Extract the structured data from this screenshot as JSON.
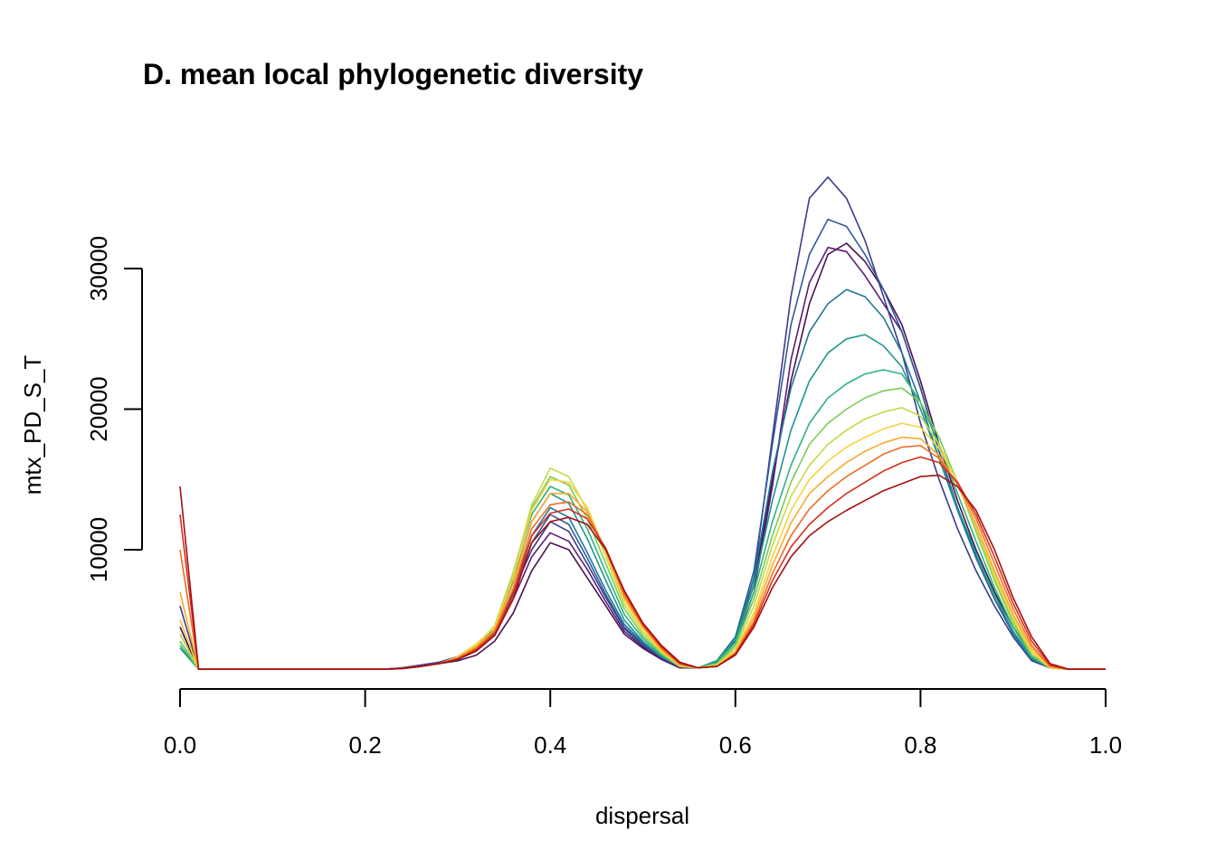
{
  "chart_data": {
    "type": "line",
    "title": "D. mean local phylogenetic diversity",
    "xlabel": "dispersal",
    "ylabel": "mtx_PD_S_T",
    "xlim": [
      0,
      1
    ],
    "ylim": [
      1500,
      38000
    ],
    "x_ticks": [
      0.0,
      0.2,
      0.4,
      0.6,
      0.8,
      1.0
    ],
    "x_tick_labels": [
      "0.0",
      "0.2",
      "0.4",
      "0.6",
      "0.8",
      "1.0"
    ],
    "y_ticks": [
      10000,
      20000,
      30000
    ],
    "y_tick_labels": [
      "10000",
      "20000",
      "30000"
    ],
    "grid": false,
    "legend": "none",
    "x": [
      0.0,
      0.02,
      0.04,
      0.06,
      0.08,
      0.1,
      0.12,
      0.14,
      0.16,
      0.18,
      0.2,
      0.22,
      0.24,
      0.26,
      0.28,
      0.3,
      0.32,
      0.34,
      0.36,
      0.38,
      0.4,
      0.42,
      0.44,
      0.46,
      0.48,
      0.5,
      0.52,
      0.54,
      0.56,
      0.58,
      0.6,
      0.62,
      0.64,
      0.66,
      0.68,
      0.7,
      0.72,
      0.74,
      0.76,
      0.78,
      0.8,
      0.82,
      0.84,
      0.86,
      0.88,
      0.9,
      0.92,
      0.94,
      0.96,
      0.98,
      1.0
    ],
    "series": [
      {
        "color": "#4b1150",
        "values": [
          4500,
          1500,
          1500,
          1500,
          1500,
          1500,
          1500,
          1500,
          1500,
          1500,
          1500,
          1500,
          1550,
          1700,
          1900,
          2100,
          2500,
          3500,
          5500,
          8500,
          10500,
          10000,
          8000,
          6000,
          4000,
          3000,
          2200,
          1600,
          1600,
          2000,
          3500,
          7500,
          15000,
          22000,
          27500,
          31000,
          31800,
          30500,
          28500,
          26000,
          22000,
          17500,
          13500,
          10000,
          7000,
          4500,
          2500,
          1600,
          1500,
          1500,
          1500
        ]
      },
      {
        "color": "#5a1d78",
        "values": [
          5000,
          1500,
          1500,
          1500,
          1500,
          1500,
          1500,
          1500,
          1500,
          1500,
          1500,
          1500,
          1600,
          1800,
          2000,
          2300,
          2800,
          4000,
          6500,
          9500,
          11200,
          10600,
          8600,
          6300,
          4200,
          3100,
          2200,
          1600,
          1600,
          1900,
          3200,
          7000,
          14500,
          23500,
          29000,
          31500,
          31200,
          29500,
          27500,
          25500,
          21500,
          17000,
          13000,
          9500,
          6500,
          4200,
          2300,
          1600,
          1500,
          1500,
          1500
        ]
      },
      {
        "color": "#3b3c8a",
        "values": [
          6000,
          1500,
          1500,
          1500,
          1500,
          1500,
          1500,
          1500,
          1500,
          1500,
          1500,
          1500,
          1600,
          1750,
          2000,
          2400,
          3000,
          4200,
          7000,
          10000,
          12000,
          11300,
          9000,
          6600,
          4400,
          3200,
          2300,
          1700,
          1600,
          2000,
          3500,
          8000,
          18000,
          28000,
          35000,
          36500,
          35000,
          32000,
          28000,
          24000,
          19000,
          15000,
          11500,
          8500,
          6000,
          3800,
          2100,
          1600,
          1500,
          1500,
          1500
        ]
      },
      {
        "color": "#2f5b9a",
        "values": [
          4000,
          1500,
          1500,
          1500,
          1500,
          1500,
          1500,
          1500,
          1500,
          1500,
          1500,
          1500,
          1550,
          1700,
          1900,
          2200,
          2800,
          4000,
          6800,
          10500,
          12500,
          11800,
          9400,
          6800,
          4500,
          3300,
          2400,
          1700,
          1600,
          2100,
          3800,
          8500,
          17500,
          26000,
          31000,
          33500,
          33000,
          31000,
          28500,
          25500,
          21500,
          17000,
          13000,
          9500,
          6500,
          4000,
          2200,
          1600,
          1500,
          1500,
          1500
        ]
      },
      {
        "color": "#227599",
        "values": [
          3500,
          1500,
          1500,
          1500,
          1500,
          1500,
          1500,
          1500,
          1500,
          1500,
          1500,
          1500,
          1550,
          1700,
          1900,
          2200,
          2800,
          4100,
          7200,
          11000,
          13000,
          12300,
          9800,
          7100,
          4700,
          3400,
          2400,
          1700,
          1600,
          2100,
          3800,
          8000,
          15500,
          21500,
          25500,
          27500,
          28500,
          28000,
          26500,
          24000,
          20500,
          16500,
          12800,
          9400,
          6500,
          4000,
          2200,
          1600,
          1500,
          1500,
          1500
        ]
      },
      {
        "color": "#1f9591",
        "values": [
          3000,
          1500,
          1500,
          1500,
          1500,
          1500,
          1500,
          1500,
          1500,
          1500,
          1500,
          1500,
          1550,
          1700,
          1900,
          2200,
          2900,
          4300,
          7800,
          12000,
          14000,
          13300,
          10800,
          7800,
          5000,
          3500,
          2400,
          1700,
          1600,
          2100,
          3600,
          7500,
          13500,
          18500,
          22000,
          24000,
          25000,
          25300,
          24500,
          23000,
          20000,
          16500,
          13000,
          9800,
          6800,
          4200,
          2300,
          1600,
          1500,
          1500,
          1500
        ]
      },
      {
        "color": "#2eb27c",
        "values": [
          3200,
          1500,
          1500,
          1500,
          1500,
          1500,
          1500,
          1500,
          1500,
          1500,
          1500,
          1500,
          1550,
          1700,
          1900,
          2300,
          3000,
          4500,
          8200,
          12500,
          14500,
          13900,
          11500,
          8400,
          5400,
          3700,
          2500,
          1700,
          1600,
          2000,
          3400,
          7000,
          12000,
          16000,
          19000,
          20800,
          21800,
          22500,
          22800,
          22500,
          20500,
          17500,
          14000,
          10600,
          7300,
          4500,
          2400,
          1600,
          1500,
          1500,
          1500
        ]
      },
      {
        "color": "#7acb57",
        "values": [
          3500,
          1500,
          1500,
          1500,
          1500,
          1500,
          1500,
          1500,
          1500,
          1500,
          1500,
          1500,
          1550,
          1700,
          1900,
          2300,
          3100,
          4600,
          8400,
          13000,
          15200,
          14600,
          12200,
          9000,
          5800,
          3900,
          2600,
          1700,
          1600,
          1900,
          3200,
          6500,
          11000,
          14800,
          17500,
          19000,
          20000,
          20800,
          21300,
          21500,
          20500,
          18000,
          14800,
          11300,
          7800,
          4800,
          2500,
          1600,
          1500,
          1500,
          1500
        ]
      },
      {
        "color": "#c4d94a",
        "values": [
          4000,
          1500,
          1500,
          1500,
          1500,
          1500,
          1500,
          1500,
          1500,
          1500,
          1500,
          1500,
          1550,
          1700,
          1900,
          2300,
          3200,
          4600,
          8300,
          13200,
          15800,
          15200,
          12800,
          9500,
          6100,
          4100,
          2700,
          1700,
          1600,
          1800,
          3000,
          6000,
          10300,
          13800,
          16000,
          17500,
          18500,
          19300,
          19800,
          20100,
          19500,
          17500,
          14800,
          11500,
          8000,
          5000,
          2700,
          1600,
          1500,
          1500,
          1500
        ]
      },
      {
        "color": "#f6d33e",
        "values": [
          5000,
          1500,
          1500,
          1500,
          1500,
          1500,
          1500,
          1500,
          1500,
          1500,
          1500,
          1500,
          1550,
          1700,
          1900,
          2400,
          3300,
          4500,
          8000,
          12800,
          15000,
          14800,
          13000,
          9800,
          6400,
          4300,
          2800,
          1800,
          1600,
          1800,
          2800,
          5500,
          9500,
          12800,
          15000,
          16300,
          17300,
          18000,
          18600,
          19000,
          18700,
          17200,
          14800,
          11700,
          8300,
          5200,
          2800,
          1600,
          1500,
          1500,
          1500
        ]
      },
      {
        "color": "#fba82f",
        "values": [
          7000,
          1500,
          1500,
          1500,
          1500,
          1500,
          1500,
          1500,
          1500,
          1500,
          1500,
          1500,
          1550,
          1700,
          1900,
          2300,
          3100,
          4300,
          7600,
          12000,
          14000,
          14000,
          12700,
          9900,
          6600,
          4500,
          2900,
          1800,
          1600,
          1700,
          2700,
          5200,
          8900,
          11900,
          14000,
          15200,
          16200,
          17000,
          17600,
          18000,
          17900,
          16700,
          14600,
          11800,
          8500,
          5400,
          3000,
          1700,
          1500,
          1500,
          1500
        ]
      },
      {
        "color": "#f06c22",
        "values": [
          10000,
          1500,
          1500,
          1500,
          1500,
          1500,
          1500,
          1500,
          1500,
          1500,
          1500,
          1500,
          1550,
          1700,
          1900,
          2300,
          3000,
          4200,
          7200,
          11500,
          13200,
          13400,
          12500,
          10000,
          6800,
          4600,
          3000,
          1900,
          1600,
          1700,
          2600,
          4900,
          8300,
          11000,
          12900,
          14200,
          15200,
          16000,
          16800,
          17300,
          17400,
          16500,
          14700,
          12200,
          9000,
          5800,
          3200,
          1700,
          1500,
          1500,
          1500
        ]
      },
      {
        "color": "#d62f1d",
        "values": [
          12500,
          1500,
          1500,
          1500,
          1500,
          1500,
          1500,
          1500,
          1500,
          1500,
          1500,
          1500,
          1550,
          1700,
          1900,
          2200,
          2900,
          4000,
          6800,
          11000,
          12600,
          12900,
          12200,
          10100,
          7000,
          4700,
          3100,
          1900,
          1600,
          1700,
          2600,
          4700,
          7800,
          10200,
          11800,
          13000,
          14000,
          14800,
          15600,
          16200,
          16600,
          16200,
          14800,
          12500,
          9500,
          6200,
          3500,
          1800,
          1500,
          1500,
          1500
        ]
      },
      {
        "color": "#a50f15",
        "values": [
          14500,
          1500,
          1500,
          1500,
          1500,
          1500,
          1500,
          1500,
          1500,
          1500,
          1500,
          1500,
          1550,
          1700,
          1900,
          2200,
          2800,
          3900,
          6500,
          10500,
          12000,
          12300,
          11800,
          10000,
          7100,
          4800,
          3200,
          2000,
          1600,
          1700,
          2500,
          4500,
          7300,
          9500,
          11000,
          12000,
          12800,
          13500,
          14200,
          14700,
          15200,
          15300,
          14500,
          12800,
          10000,
          6600,
          3800,
          1900,
          1500,
          1500,
          1500
        ]
      }
    ]
  }
}
